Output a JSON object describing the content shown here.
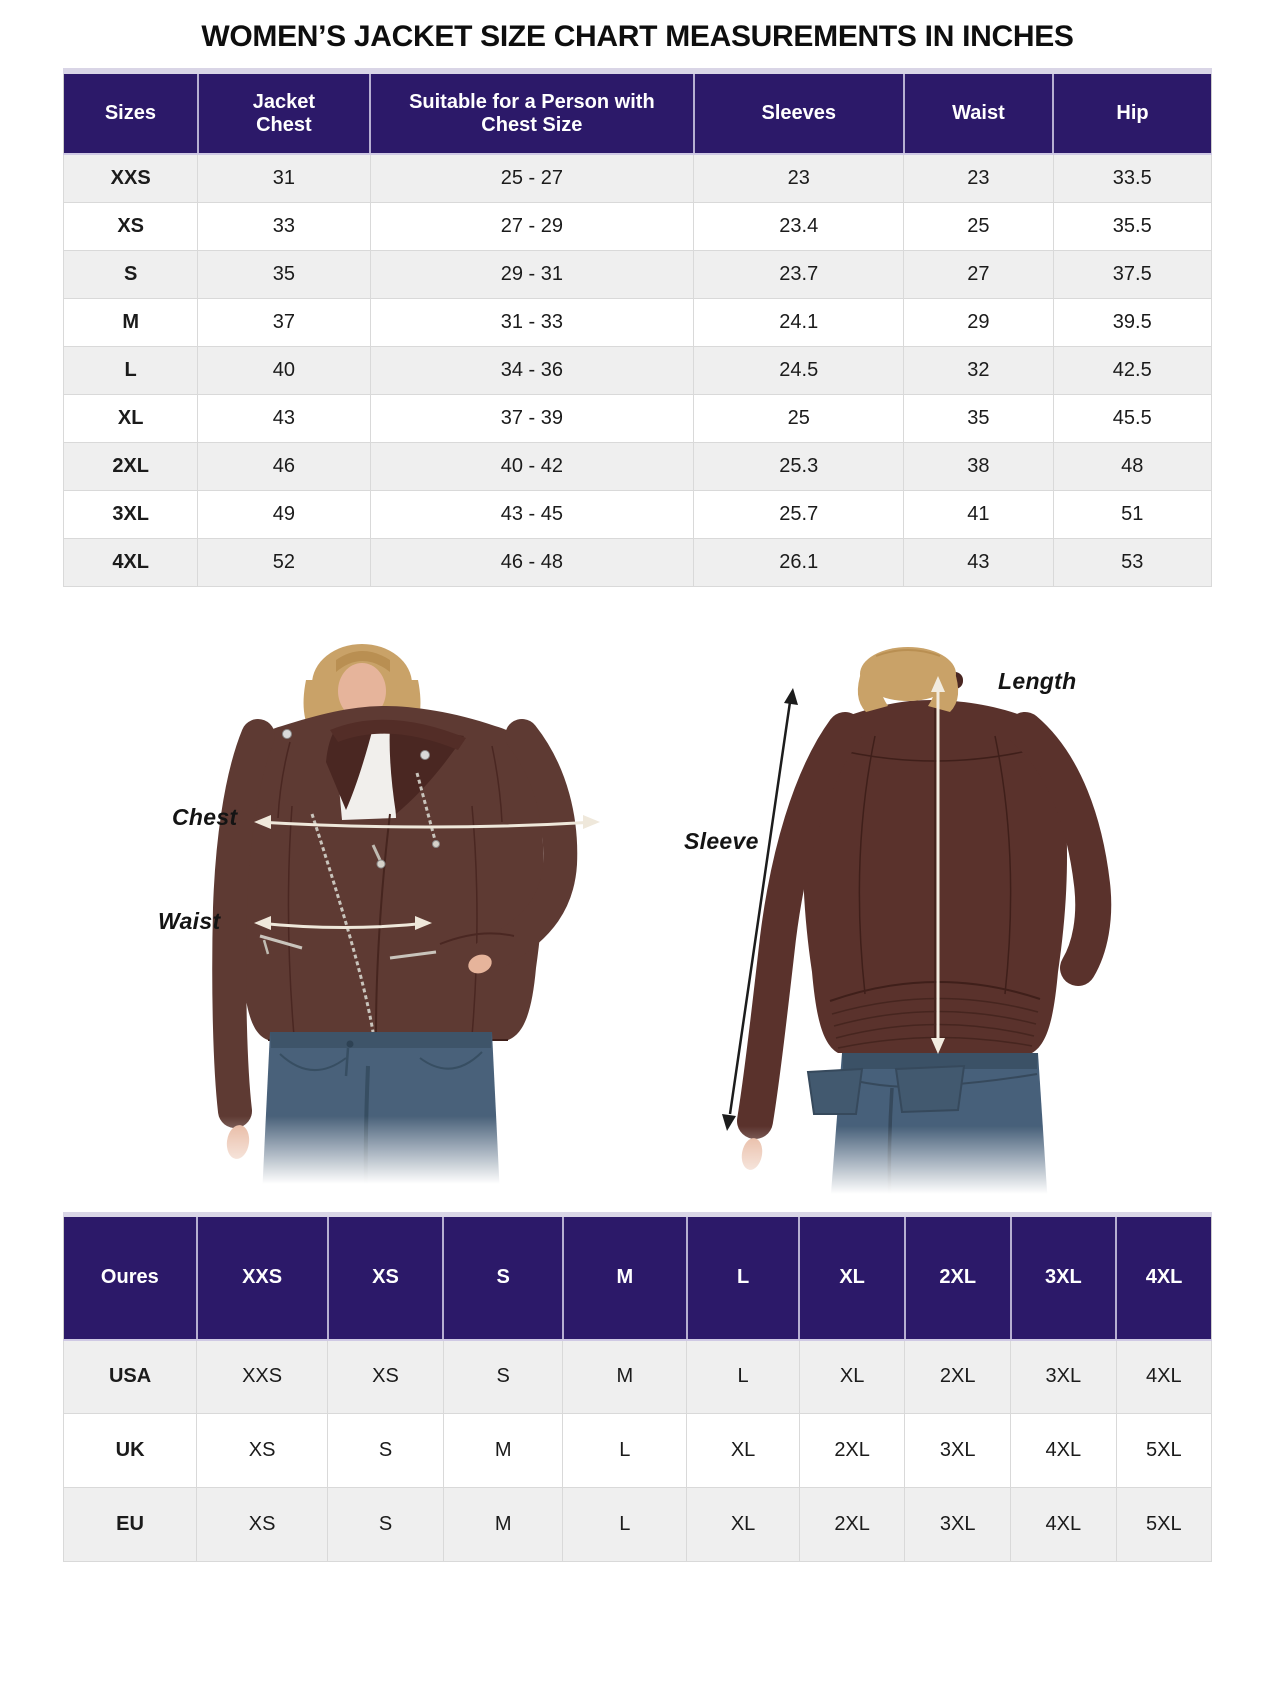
{
  "title": "WOMEN’S JACKET SIZE CHART MEASUREMENTS IN INCHES",
  "size_chart": {
    "columns": [
      "Sizes",
      "Jacket Chest",
      "Suitable for a Person with Chest Size",
      "Sleeves",
      "Waist",
      "Hip"
    ],
    "rows": [
      [
        "XXS",
        "31",
        "25 - 27",
        "23",
        "23",
        "33.5"
      ],
      [
        "XS",
        "33",
        "27 - 29",
        "23.4",
        "25",
        "35.5"
      ],
      [
        "S",
        "35",
        "29 - 31",
        "23.7",
        "27",
        "37.5"
      ],
      [
        "M",
        "37",
        "31 - 33",
        "24.1",
        "29",
        "39.5"
      ],
      [
        "L",
        "40",
        "34 - 36",
        "24.5",
        "32",
        "42.5"
      ],
      [
        "XL",
        "43",
        "37 - 39",
        "25",
        "35",
        "45.5"
      ],
      [
        "2XL",
        "46",
        "40 - 42",
        "25.3",
        "38",
        "48"
      ],
      [
        "3XL",
        "49",
        "43 - 45",
        "25.7",
        "41",
        "51"
      ],
      [
        "4XL",
        "52",
        "46 - 48",
        "26.1",
        "43",
        "53"
      ]
    ]
  },
  "figure_labels": {
    "chest": "Chest",
    "waist": "Waist",
    "sleeve": "Sleeve",
    "length": "Length"
  },
  "conversion_chart": {
    "columns": [
      "Oures",
      "XXS",
      "XS",
      "S",
      "M",
      "L",
      "XL",
      "2XL",
      "3XL",
      "4XL"
    ],
    "rows": [
      [
        "USA",
        "XXS",
        "XS",
        "S",
        "M",
        "L",
        "XL",
        "2XL",
        "3XL",
        "4XL"
      ],
      [
        "UK",
        "XS",
        "S",
        "M",
        "L",
        "XL",
        "2XL",
        "3XL",
        "4XL",
        "5XL"
      ],
      [
        "EU",
        "XS",
        "S",
        "M",
        "L",
        "XL",
        "2XL",
        "3XL",
        "4XL",
        "5XL"
      ]
    ]
  },
  "colors": {
    "header_bg": "#2C1969",
    "header_text": "#FFFFFF",
    "row_alt_bg": "#EFEFEF",
    "row_bg": "#FFFFFF",
    "grid_border": "#D9D9D9",
    "jacket_brown": "#5E3A33",
    "jeans_blue": "#49617A",
    "arrow_light": "#EFE8DB",
    "arrow_dark": "#1C1C1C",
    "label_text": "#141414"
  }
}
